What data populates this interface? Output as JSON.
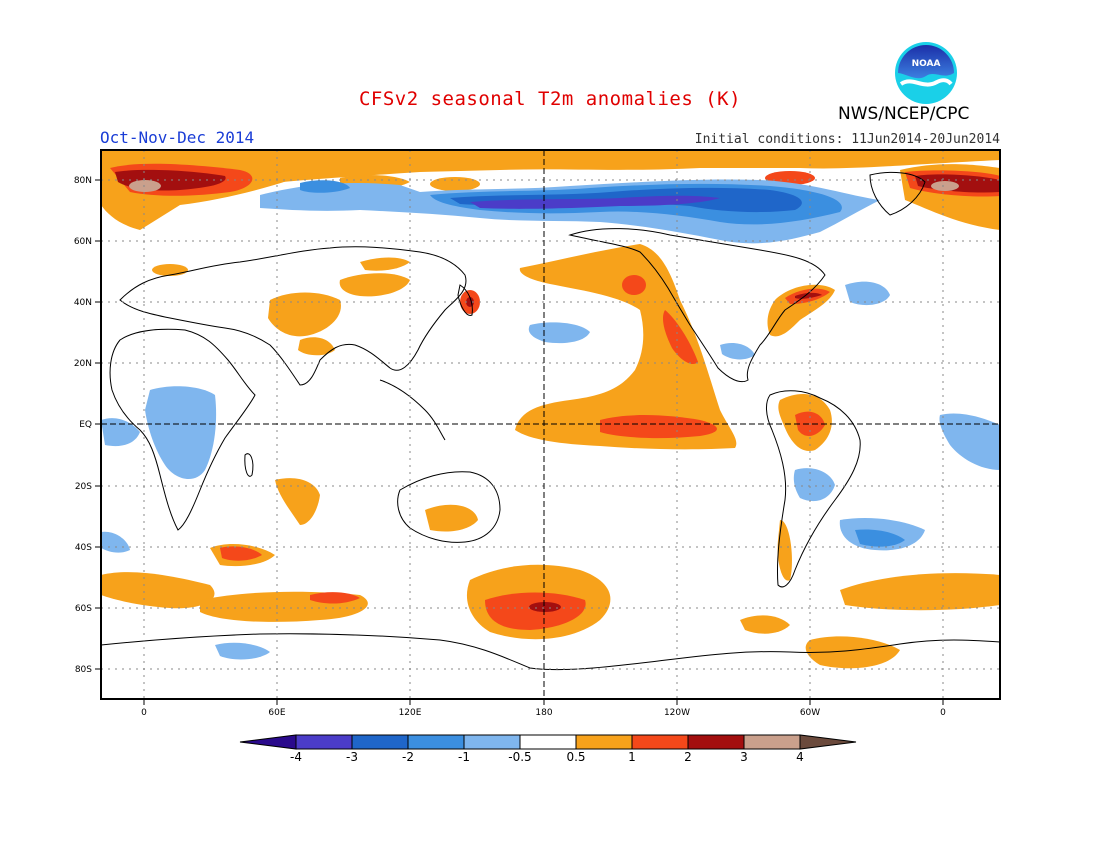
{
  "header": {
    "title": "CFSv2 seasonal T2m anomalies (K)",
    "org": "NWS/NCEP/CPC",
    "season": "Oct-Nov-Dec 2014",
    "init_conditions": "Initial conditions: 11Jun2014-20Jun2014"
  },
  "logo": {
    "text": "NOAA"
  },
  "map": {
    "lon_labels": [
      "0",
      "60E",
      "120E",
      "180",
      "120W",
      "60W",
      "0"
    ],
    "lat_labels": [
      "80N",
      "60N",
      "40N",
      "20N",
      "EQ",
      "20S",
      "40S",
      "60S",
      "80S"
    ]
  },
  "colorbar": {
    "labels": [
      "-4",
      "-3",
      "-2",
      "-1",
      "-0.5",
      "0.5",
      "1",
      "2",
      "3",
      "4"
    ],
    "colors": [
      "#2a0a8c",
      "#4b3cc8",
      "#1f66c9",
      "#3b8fe0",
      "#7fb6ee",
      "#ffffff",
      "#f7a21b",
      "#f4481a",
      "#a30f0f",
      "#caa08c",
      "#6b4a3c"
    ]
  },
  "colors": {
    "title": "#e00000",
    "season": "#1a3dd6"
  }
}
